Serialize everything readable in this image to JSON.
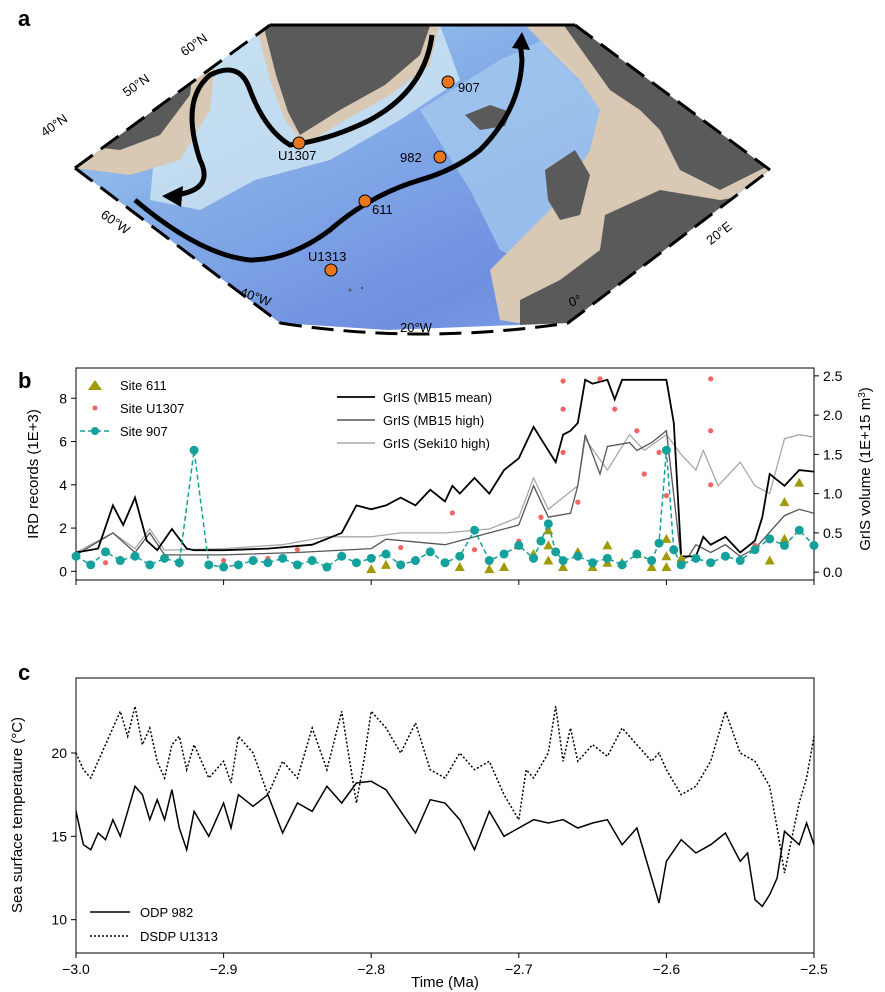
{
  "colors": {
    "ocean_deep": "#6f8fe0",
    "ocean_mid": "#8fb3ea",
    "ocean_shelf": "#a8d4ee",
    "land": "#5a5a5a",
    "land_shelf_beige": "#d9c8b4",
    "site_marker": "#e8771c",
    "site_611": "#a09a05",
    "site_U1307": "#f06464",
    "site_907": "#14a19c",
    "grls_mean": "#000000",
    "grls_mb15_high": "#555555",
    "grls_seki10": "#a8a8a8"
  },
  "panel_a": {
    "letter": "a",
    "lat_labels": [
      "60°N",
      "50°N",
      "40°N"
    ],
    "lon_labels": [
      "60°W",
      "40°W",
      "20°W",
      "0°",
      "20°E"
    ],
    "sites": [
      "907",
      "U1307",
      "982",
      "611",
      "U1313"
    ]
  },
  "panel_b": {
    "letter": "b",
    "left_axis_label": "IRD records (1E+3)",
    "right_axis_label": "GrIS volume (1E+15 m",
    "right_axis_label_sup": "3",
    "right_axis_label_end": ")",
    "left_ticks": [
      "0",
      "2",
      "4",
      "6",
      "8"
    ],
    "right_ticks": [
      "0.0",
      "0.5",
      "1.0",
      "1.5",
      "2.0",
      "2.5"
    ],
    "legend_left": [
      "Site 611",
      "Site U1307",
      "Site 907"
    ],
    "legend_right": [
      "GrIS (MB15 mean)",
      "GrIS (MB15 high)",
      "GrIS (Seki10 high)"
    ]
  },
  "panel_c": {
    "letter": "c",
    "ylabel": "Sea surface temperature (°C)",
    "xlabel": "Time (Ma)",
    "y_ticks": [
      "10",
      "15",
      "20"
    ],
    "x_ticks": [
      "−3.0",
      "−2.9",
      "−2.8",
      "−2.7",
      "−2.6",
      "−2.5"
    ],
    "legend": [
      "ODP 982",
      "DSDP U1313"
    ]
  },
  "chart_data": [
    {
      "type": "scatter",
      "panel": "b",
      "xlim": [
        -3.0,
        -2.5
      ],
      "ylim_left": [
        -0.4,
        9.4
      ],
      "ylim_right": [
        -0.1,
        2.6
      ],
      "series": [
        {
          "name": "GrIS (MB15 mean)",
          "axis": "right",
          "style": "line",
          "x": [
            -3.0,
            -2.985,
            -2.975,
            -2.968,
            -2.96,
            -2.952,
            -2.945,
            -2.935,
            -2.925,
            -2.92,
            -2.9,
            -2.87,
            -2.84,
            -2.82,
            -2.81,
            -2.8,
            -2.79,
            -2.78,
            -2.77,
            -2.76,
            -2.75,
            -2.745,
            -2.74,
            -2.73,
            -2.72,
            -2.71,
            -2.7,
            -2.69,
            -2.685,
            -2.675,
            -2.67,
            -2.665,
            -2.66,
            -2.655,
            -2.65,
            -2.64,
            -2.635,
            -2.63,
            -2.6,
            -2.595,
            -2.59,
            -2.58,
            -2.575,
            -2.57,
            -2.56,
            -2.55,
            -2.54,
            -2.535,
            -2.53,
            -2.52,
            -2.51,
            -2.5
          ],
          "y": [
            0.25,
            0.3,
            0.85,
            0.6,
            0.95,
            0.4,
            0.28,
            0.55,
            0.3,
            0.28,
            0.28,
            0.3,
            0.35,
            0.5,
            0.85,
            0.8,
            0.85,
            0.95,
            0.85,
            1.05,
            0.9,
            1.1,
            1.0,
            1.2,
            1.0,
            1.3,
            1.45,
            1.85,
            1.7,
            1.4,
            1.75,
            1.8,
            1.9,
            2.45,
            2.4,
            2.45,
            2.2,
            2.45,
            2.45,
            1.9,
            0.2,
            0.2,
            0.45,
            0.35,
            0.45,
            0.25,
            0.4,
            0.7,
            1.25,
            1.1,
            1.3,
            1.28
          ]
        },
        {
          "name": "GrIS (MB15 high)",
          "axis": "right",
          "style": "line",
          "x": [
            -3.0,
            -2.975,
            -2.96,
            -2.95,
            -2.94,
            -2.9,
            -2.85,
            -2.8,
            -2.79,
            -2.75,
            -2.72,
            -2.7,
            -2.69,
            -2.68,
            -2.665,
            -2.66,
            -2.655,
            -2.645,
            -2.64,
            -2.625,
            -2.62,
            -2.61,
            -2.6,
            -2.59,
            -2.585,
            -2.58,
            -2.57,
            -2.56,
            -2.55,
            -2.54,
            -2.52,
            -2.51,
            -2.5
          ],
          "y": [
            0.22,
            0.5,
            0.25,
            0.5,
            0.22,
            0.22,
            0.25,
            0.3,
            0.42,
            0.35,
            0.5,
            0.6,
            1.1,
            0.7,
            0.75,
            1.1,
            1.75,
            1.25,
            1.6,
            1.65,
            1.55,
            1.65,
            1.8,
            0.15,
            0.2,
            0.35,
            0.25,
            0.35,
            0.2,
            0.3,
            0.72,
            0.8,
            0.75
          ]
        },
        {
          "name": "GrIS (Seki10 high)",
          "axis": "right",
          "style": "line",
          "x": [
            -3.0,
            -2.975,
            -2.96,
            -2.95,
            -2.94,
            -2.9,
            -2.86,
            -2.83,
            -2.8,
            -2.78,
            -2.75,
            -2.72,
            -2.7,
            -2.69,
            -2.68,
            -2.66,
            -2.655,
            -2.64,
            -2.625,
            -2.615,
            -2.6,
            -2.59,
            -2.58,
            -2.575,
            -2.565,
            -2.55,
            -2.54,
            -2.53,
            -2.52,
            -2.51,
            -2.5
          ],
          "y": [
            0.25,
            0.5,
            0.3,
            0.55,
            0.28,
            0.3,
            0.35,
            0.45,
            0.45,
            0.5,
            0.5,
            0.55,
            0.7,
            1.2,
            0.8,
            1.1,
            1.7,
            1.3,
            1.75,
            1.55,
            1.75,
            1.5,
            1.3,
            1.55,
            1.1,
            1.4,
            1.1,
            1.0,
            1.7,
            1.75,
            1.72
          ]
        },
        {
          "name": "Site 611",
          "axis": "left",
          "style": "triangle",
          "x": [
            -2.8,
            -2.79,
            -2.74,
            -2.72,
            -2.71,
            -2.7,
            -2.69,
            -2.68,
            -2.68,
            -2.68,
            -2.67,
            -2.66,
            -2.65,
            -2.64,
            -2.64,
            -2.63,
            -2.62,
            -2.61,
            -2.6,
            -2.6,
            -2.6,
            -2.59,
            -2.53,
            -2.52,
            -2.52,
            -2.51
          ],
          "y": [
            0.1,
            0.3,
            0.2,
            0.1,
            0.2,
            1.2,
            0.8,
            1.9,
            1.2,
            0.5,
            0.2,
            0.9,
            0.2,
            0.4,
            1.2,
            0.4,
            0.8,
            0.2,
            1.5,
            0.7,
            0.2,
            0.6,
            0.5,
            3.2,
            1.5,
            4.1
          ]
        },
        {
          "name": "Site U1307",
          "axis": "left",
          "style": "dot",
          "x": [
            -2.98,
            -2.97,
            -2.96,
            -2.93,
            -2.9,
            -2.87,
            -2.85,
            -2.82,
            -2.8,
            -2.78,
            -2.76,
            -2.745,
            -2.73,
            -2.7,
            -2.685,
            -2.67,
            -2.67,
            -2.67,
            -2.66,
            -2.645,
            -2.635,
            -2.62,
            -2.615,
            -2.605,
            -2.6,
            -2.57,
            -2.57,
            -2.57,
            -2.54
          ],
          "y": [
            0.4,
            0.6,
            0.8,
            0.3,
            0.5,
            0.6,
            1.0,
            0.8,
            0.6,
            1.1,
            0.9,
            2.7,
            1.0,
            1.4,
            2.5,
            8.8,
            7.5,
            5.5,
            3.2,
            8.9,
            7.5,
            6.5,
            4.5,
            5.5,
            3.5,
            8.9,
            6.5,
            4.0,
            1.2
          ]
        },
        {
          "name": "Site 907",
          "axis": "left",
          "style": "dot-dash",
          "x": [
            -3.0,
            -2.99,
            -2.98,
            -2.97,
            -2.96,
            -2.95,
            -2.94,
            -2.93,
            -2.92,
            -2.91,
            -2.9,
            -2.89,
            -2.88,
            -2.87,
            -2.86,
            -2.85,
            -2.84,
            -2.83,
            -2.82,
            -2.81,
            -2.8,
            -2.79,
            -2.78,
            -2.77,
            -2.76,
            -2.75,
            -2.74,
            -2.73,
            -2.72,
            -2.71,
            -2.7,
            -2.69,
            -2.685,
            -2.68,
            -2.675,
            -2.67,
            -2.66,
            -2.65,
            -2.64,
            -2.63,
            -2.62,
            -2.61,
            -2.605,
            -2.6,
            -2.595,
            -2.59,
            -2.58,
            -2.57,
            -2.56,
            -2.55,
            -2.54,
            -2.53,
            -2.52,
            -2.51,
            -2.5
          ],
          "y": [
            0.7,
            0.3,
            0.9,
            0.5,
            0.7,
            0.3,
            0.6,
            0.4,
            5.6,
            0.3,
            0.2,
            0.3,
            0.5,
            0.4,
            0.6,
            0.3,
            0.5,
            0.2,
            0.7,
            0.4,
            0.6,
            0.8,
            0.3,
            0.5,
            0.9,
            0.4,
            0.7,
            1.9,
            0.5,
            0.8,
            1.2,
            0.6,
            1.4,
            2.2,
            0.9,
            0.5,
            0.7,
            0.4,
            0.6,
            0.3,
            0.8,
            0.5,
            1.3,
            5.6,
            1.0,
            0.3,
            0.6,
            0.4,
            0.7,
            0.5,
            1.0,
            1.5,
            1.2,
            1.9,
            1.2
          ]
        }
      ]
    },
    {
      "type": "line",
      "panel": "c",
      "xlim": [
        -3.0,
        -2.5
      ],
      "ylim": [
        8,
        24.5
      ],
      "xlabel": "Time (Ma)",
      "ylabel": "Sea surface temperature (°C)",
      "series": [
        {
          "name": "ODP 982",
          "x": [
            -3.0,
            -2.995,
            -2.99,
            -2.985,
            -2.98,
            -2.975,
            -2.97,
            -2.965,
            -2.96,
            -2.955,
            -2.95,
            -2.945,
            -2.94,
            -2.935,
            -2.93,
            -2.925,
            -2.92,
            -2.91,
            -2.9,
            -2.895,
            -2.89,
            -2.88,
            -2.87,
            -2.86,
            -2.85,
            -2.84,
            -2.83,
            -2.82,
            -2.81,
            -2.8,
            -2.79,
            -2.78,
            -2.77,
            -2.76,
            -2.75,
            -2.74,
            -2.73,
            -2.72,
            -2.71,
            -2.7,
            -2.69,
            -2.68,
            -2.67,
            -2.66,
            -2.65,
            -2.64,
            -2.63,
            -2.62,
            -2.61,
            -2.605,
            -2.6,
            -2.59,
            -2.58,
            -2.57,
            -2.56,
            -2.55,
            -2.545,
            -2.54,
            -2.535,
            -2.53,
            -2.525,
            -2.52,
            -2.51,
            -2.505,
            -2.5
          ],
          "y": [
            16.5,
            14.5,
            14.2,
            15.2,
            14.8,
            16.0,
            15.0,
            16.5,
            18.0,
            17.5,
            16.0,
            17.2,
            16.0,
            17.8,
            15.5,
            14.2,
            16.5,
            15.0,
            17.0,
            15.5,
            17.5,
            16.8,
            17.5,
            15.2,
            17.0,
            16.5,
            18.0,
            17.0,
            18.2,
            18.3,
            17.8,
            16.5,
            15.2,
            17.2,
            17.0,
            16.0,
            14.2,
            16.5,
            15.0,
            15.5,
            16.0,
            15.8,
            16.0,
            15.5,
            15.8,
            16.0,
            14.5,
            15.5,
            12.5,
            11.0,
            13.5,
            14.8,
            14.0,
            14.5,
            15.2,
            13.5,
            14.0,
            11.2,
            10.8,
            11.5,
            12.5,
            15.3,
            14.5,
            15.8,
            14.5
          ]
        },
        {
          "name": "DSDP U1313",
          "x": [
            -3.0,
            -2.995,
            -2.99,
            -2.985,
            -2.98,
            -2.975,
            -2.97,
            -2.965,
            -2.96,
            -2.955,
            -2.95,
            -2.945,
            -2.94,
            -2.935,
            -2.93,
            -2.925,
            -2.92,
            -2.91,
            -2.9,
            -2.895,
            -2.89,
            -2.88,
            -2.87,
            -2.86,
            -2.85,
            -2.84,
            -2.83,
            -2.82,
            -2.81,
            -2.805,
            -2.8,
            -2.79,
            -2.78,
            -2.77,
            -2.76,
            -2.75,
            -2.74,
            -2.73,
            -2.72,
            -2.71,
            -2.7,
            -2.695,
            -2.69,
            -2.68,
            -2.675,
            -2.67,
            -2.665,
            -2.66,
            -2.65,
            -2.64,
            -2.63,
            -2.62,
            -2.61,
            -2.605,
            -2.6,
            -2.59,
            -2.58,
            -2.57,
            -2.56,
            -2.55,
            -2.54,
            -2.53,
            -2.525,
            -2.52,
            -2.51,
            -2.505,
            -2.5
          ],
          "y": [
            20.0,
            19.0,
            18.5,
            19.5,
            20.5,
            21.5,
            22.5,
            21.0,
            22.8,
            20.5,
            21.5,
            19.5,
            18.5,
            20.5,
            21.0,
            19.0,
            20.5,
            18.5,
            19.5,
            18.2,
            21.0,
            20.0,
            17.5,
            19.5,
            18.5,
            21.5,
            19.0,
            22.5,
            17.0,
            19.5,
            22.5,
            21.5,
            20.0,
            21.8,
            19.0,
            18.5,
            20.0,
            19.0,
            19.5,
            17.5,
            16.0,
            19.0,
            18.5,
            20.0,
            22.8,
            19.5,
            21.5,
            19.5,
            20.5,
            19.8,
            21.5,
            20.5,
            19.5,
            20.0,
            19.0,
            17.5,
            18.0,
            19.5,
            22.5,
            20.0,
            19.5,
            18.0,
            15.5,
            12.8,
            17.0,
            18.5,
            21.0
          ]
        }
      ]
    }
  ]
}
